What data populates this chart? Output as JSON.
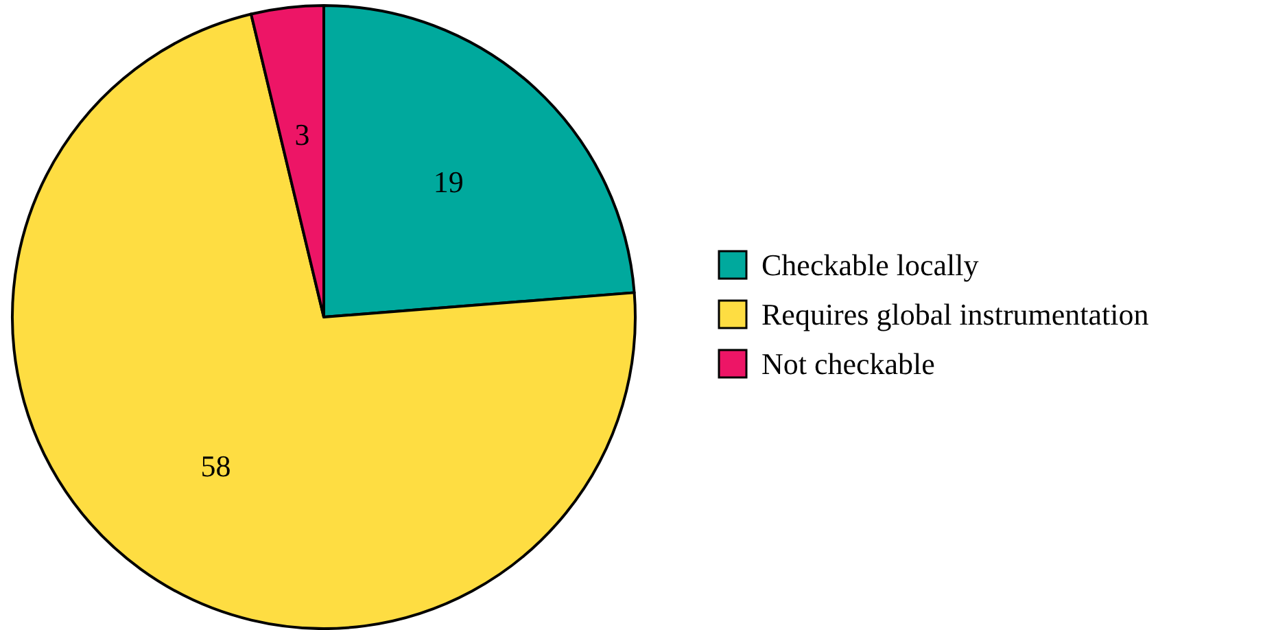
{
  "chart_data": {
    "type": "pie",
    "categories": [
      "Checkable locally",
      "Requires global instrumentation",
      "Not checkable"
    ],
    "values": [
      19,
      58,
      3
    ],
    "colors": [
      "#00a99d",
      "#fedd42",
      "#ed1566"
    ],
    "data_labels": true,
    "legend": "right"
  }
}
